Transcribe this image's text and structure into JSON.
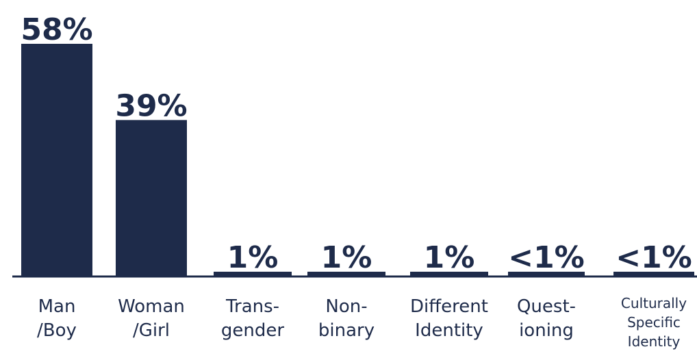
{
  "chart_data": {
    "type": "bar",
    "categories": [
      [
        "Man",
        "/Boy"
      ],
      [
        "Woman",
        "/Girl"
      ],
      [
        "Trans-",
        "gender"
      ],
      [
        "Non-",
        "binary"
      ],
      [
        "Different",
        "Identity"
      ],
      [
        "Quest-",
        "ioning"
      ],
      [
        "Culturally",
        "Specific",
        "Identity"
      ]
    ],
    "values": [
      58,
      39,
      1,
      1,
      1,
      0.5,
      0.5
    ],
    "value_labels": [
      "58%",
      "39%",
      "1%",
      "1%",
      "1%",
      "<1%",
      "<1%"
    ],
    "ylim": [
      0,
      58
    ],
    "grid": false,
    "legend": "none",
    "bar_color": "#1e2b4a",
    "baseline_color": "#1e2b4a"
  }
}
